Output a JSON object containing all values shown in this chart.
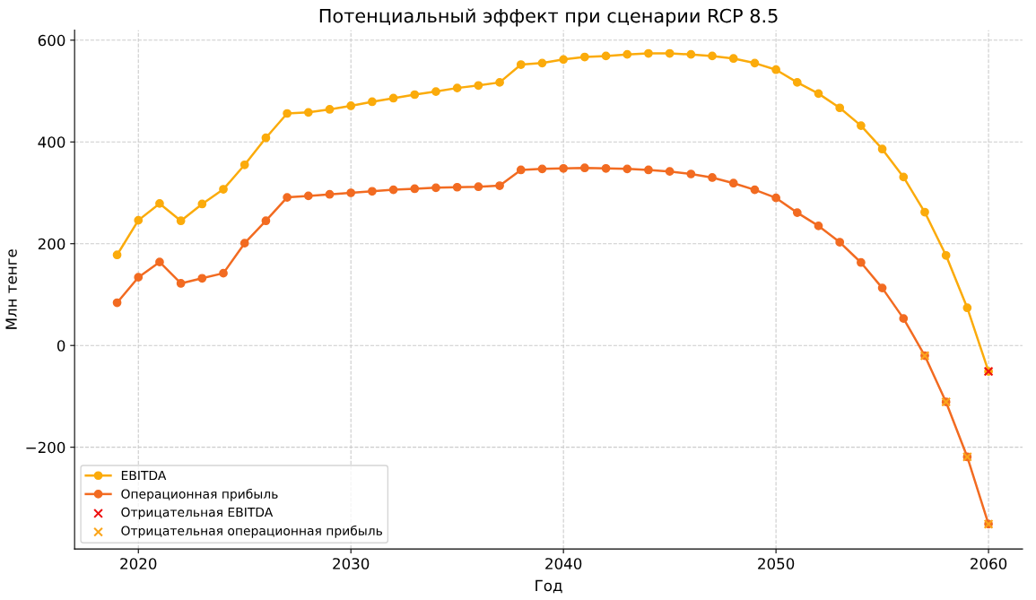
{
  "chart_data": {
    "type": "line",
    "title": "Потенциальный эффект при сценарии RCP 8.5",
    "xlabel": "Год",
    "ylabel": "Млн тенге",
    "x": [
      2019,
      2020,
      2021,
      2022,
      2023,
      2024,
      2025,
      2026,
      2027,
      2028,
      2029,
      2030,
      2031,
      2032,
      2033,
      2034,
      2035,
      2036,
      2037,
      2038,
      2039,
      2040,
      2041,
      2042,
      2043,
      2044,
      2045,
      2046,
      2047,
      2048,
      2049,
      2050,
      2051,
      2052,
      2053,
      2054,
      2055,
      2056,
      2057,
      2058,
      2059,
      2060
    ],
    "series": [
      {
        "name": "EBITDA",
        "color": "#fbab0b",
        "marker": "circle",
        "values": [
          178,
          246,
          279,
          245,
          278,
          307,
          355,
          408,
          456,
          458,
          464,
          471,
          479,
          486,
          493,
          499,
          506,
          511,
          517,
          552,
          555,
          562,
          567,
          569,
          572,
          574,
          574,
          572,
          569,
          564,
          555,
          542,
          517,
          495,
          467,
          432,
          386,
          331,
          262,
          177,
          74,
          -51
        ]
      },
      {
        "name": "Операционная прибыль",
        "color": "#f26b21",
        "marker": "circle",
        "values": [
          84,
          134,
          164,
          122,
          132,
          142,
          201,
          245,
          291,
          294,
          297,
          300,
          303,
          306,
          308,
          310,
          311,
          312,
          314,
          345,
          347,
          348,
          349,
          348,
          347,
          345,
          342,
          337,
          330,
          319,
          306,
          290,
          261,
          235,
          203,
          163,
          113,
          53,
          -20,
          -111,
          -219,
          -351
        ]
      },
      {
        "name": "Отрицательная EBITDA",
        "type": "scatter",
        "color": "#ee1111",
        "marker": "cross",
        "x": [
          2060
        ],
        "values": [
          -51
        ]
      },
      {
        "name": "Отрицательная операционная прибыль",
        "type": "scatter",
        "color": "#fba51a",
        "marker": "cross",
        "x": [
          2057,
          2058,
          2059,
          2060
        ],
        "values": [
          -20,
          -111,
          -219,
          -351
        ]
      }
    ],
    "xlim": [
      2017,
      2061.6
    ],
    "ylim": [
      -400,
      620
    ],
    "xticks": [
      2020,
      2030,
      2040,
      2050,
      2060
    ],
    "yticks": [
      -200,
      0,
      200,
      400,
      600
    ],
    "grid": true,
    "legend": "bottom left",
    "line_style": "solid"
  }
}
